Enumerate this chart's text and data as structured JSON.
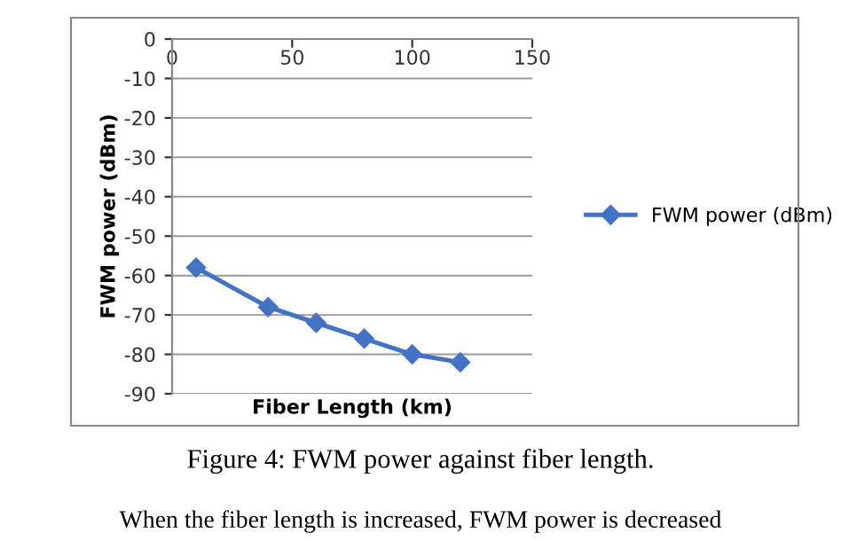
{
  "chart_data": {
    "type": "line",
    "xlabel": "Fiber Length (km)",
    "ylabel": "FWM power (dBm)",
    "x": [
      10,
      40,
      60,
      80,
      100,
      120
    ],
    "series": [
      {
        "name": "FWM power (dBm)",
        "color": "#4472c4",
        "values": [
          -58,
          -68,
          -72,
          -76,
          -80,
          -82
        ]
      }
    ],
    "xlim": [
      0,
      150
    ],
    "xticks": [
      0,
      50,
      100,
      150
    ],
    "ylim": [
      -90,
      0
    ],
    "yticks": [
      0,
      -10,
      -20,
      -30,
      -40,
      -50,
      -60,
      -70,
      -80,
      -90
    ],
    "grid": "y",
    "legend": "right",
    "marker": "diamond",
    "line_style": "solid",
    "annotations": [
      "Figure 4: FWM power against fiber length.",
      "When the fiber length is increased, FWM power is decreased"
    ]
  }
}
